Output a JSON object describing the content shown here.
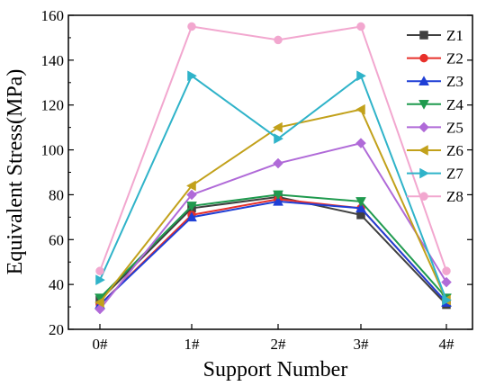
{
  "chart_data": {
    "type": "line",
    "title": "",
    "xlabel": "Support Number",
    "ylabel": "Equivalent Stress(MPa)",
    "categories": [
      "0#",
      "1#",
      "2#",
      "3#",
      "4#"
    ],
    "ylim": [
      20,
      160
    ],
    "yticks": [
      20,
      40,
      60,
      80,
      100,
      120,
      140,
      160
    ],
    "grid": false,
    "legend_position": "right",
    "series": [
      {
        "name": "Z1",
        "color": "#404040",
        "marker": "square",
        "values": [
          33,
          74,
          79,
          71,
          31
        ]
      },
      {
        "name": "Z2",
        "color": "#e8302a",
        "marker": "circle",
        "values": [
          31,
          71,
          78,
          74,
          32
        ]
      },
      {
        "name": "Z3",
        "color": "#1f3fd6",
        "marker": "triangle-up",
        "values": [
          31,
          70,
          77,
          74,
          32
        ]
      },
      {
        "name": "Z4",
        "color": "#1f9a4e",
        "marker": "triangle-down",
        "values": [
          34,
          75,
          80,
          77,
          34
        ]
      },
      {
        "name": "Z5",
        "color": "#b06ad8",
        "marker": "diamond",
        "values": [
          29,
          80,
          94,
          103,
          41
        ]
      },
      {
        "name": "Z6",
        "color": "#c2a11b",
        "marker": "triangle-left",
        "values": [
          32,
          84,
          110,
          118,
          33
        ]
      },
      {
        "name": "Z7",
        "color": "#2fb3c9",
        "marker": "triangle-right",
        "values": [
          42,
          133,
          105,
          133,
          33
        ]
      },
      {
        "name": "Z8",
        "color": "#f2a7cf",
        "marker": "circle",
        "values": [
          46,
          155,
          149,
          155,
          46
        ]
      }
    ]
  }
}
